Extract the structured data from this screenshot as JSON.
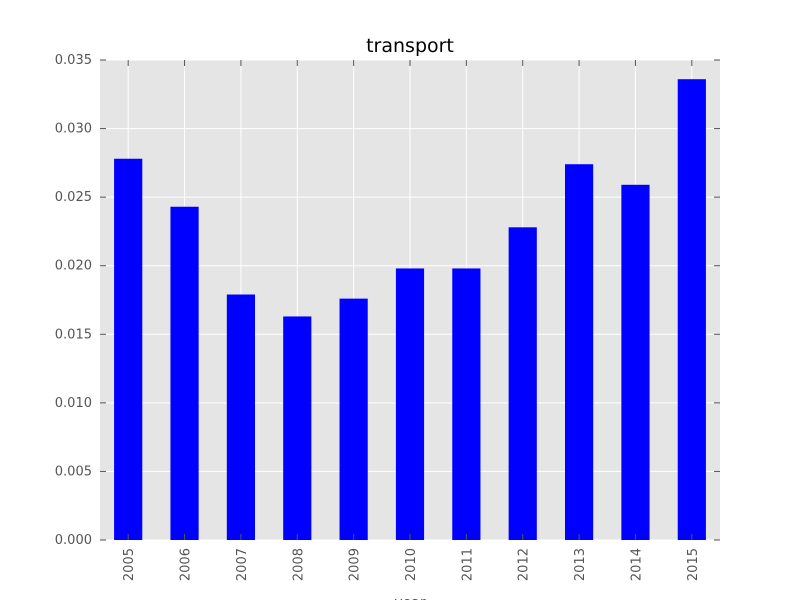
{
  "chart_data": {
    "type": "bar",
    "title": "transport",
    "xlabel": "year",
    "ylabel": "",
    "categories": [
      "2005",
      "2006",
      "2007",
      "2008",
      "2009",
      "2010",
      "2011",
      "2012",
      "2013",
      "2014",
      "2015"
    ],
    "values": [
      0.0278,
      0.0243,
      0.0179,
      0.0163,
      0.0176,
      0.0198,
      0.0198,
      0.0228,
      0.0274,
      0.0259,
      0.0336
    ],
    "ylim": [
      0,
      0.035
    ],
    "yticks": [
      "0.000",
      "0.005",
      "0.010",
      "0.015",
      "0.020",
      "0.025",
      "0.030",
      "0.035"
    ],
    "grid": true,
    "legend": "none",
    "colors": {
      "bar": "#0000ff",
      "plot_background": "#e5e5e5",
      "grid": "#ffffff",
      "tick_text": "#555555"
    }
  }
}
